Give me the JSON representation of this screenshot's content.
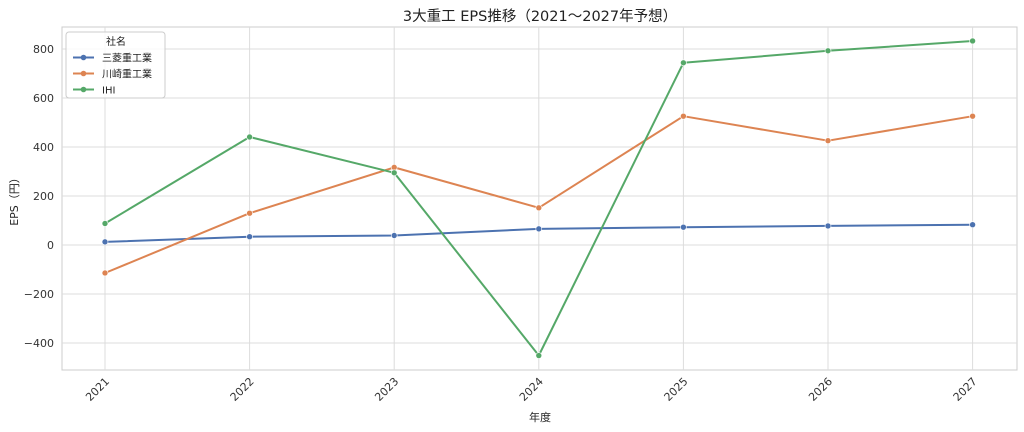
{
  "chart_data": {
    "type": "line",
    "title": "3大重工 EPS推移（2021～2027年予想）",
    "xlabel": "年度",
    "ylabel": "EPS（円）",
    "x": [
      "2021",
      "2022",
      "2023",
      "2024",
      "2025",
      "2026",
      "2027"
    ],
    "ylim": [
      -510,
      890
    ],
    "yticks": [
      -400,
      -200,
      0,
      200,
      400,
      600,
      800
    ],
    "ytick_labels": [
      "−400",
      "−200",
      "0",
      "200",
      "400",
      "600",
      "800"
    ],
    "grid": true,
    "legend": {
      "title": "社名",
      "placement": "top-left"
    },
    "series": [
      {
        "name": "三菱重工業",
        "color": "#4c72b0",
        "values": [
          13,
          34,
          39,
          66,
          73,
          78,
          83
        ]
      },
      {
        "name": "川崎重工業",
        "color": "#dd8452",
        "values": [
          -114,
          130,
          317,
          152,
          526,
          426,
          526
        ]
      },
      {
        "name": "IHI",
        "color": "#55a868",
        "values": [
          88,
          441,
          295,
          -451,
          744,
          793,
          833
        ]
      }
    ]
  }
}
